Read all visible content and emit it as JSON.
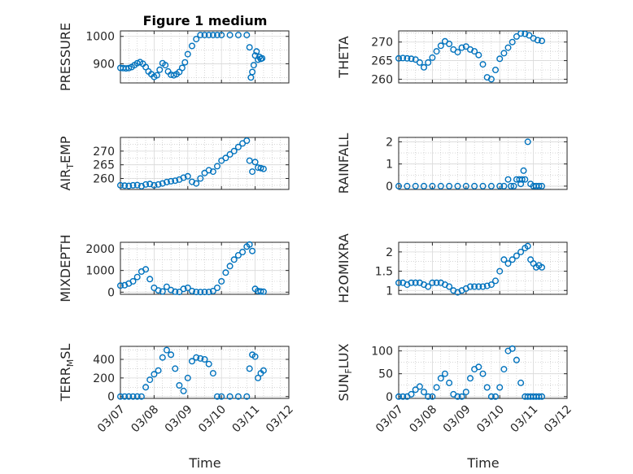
{
  "figure": {
    "title": "Figure 1 medium"
  },
  "colors": {
    "marker": "#0072BD",
    "axis": "#262626",
    "grid": "#bdbdbd"
  },
  "chart_data": [
    {
      "id": "pressure",
      "type": "scatter",
      "title": "Figure 1 medium",
      "ylabel": "PRESSURE",
      "xlim": [
        "03/07",
        "03/12"
      ],
      "ylim": [
        830,
        1020
      ],
      "yticks": [
        900,
        1000
      ],
      "ytick_labels": [
        "900",
        "1000"
      ],
      "xticks": [
        "03/07",
        "03/08",
        "03/09",
        "03/10",
        "03/11",
        "03/12"
      ],
      "x": [
        "03/07 00:00",
        "03/07 02:00",
        "03/07 04:00",
        "03/07 06:00",
        "03/07 08:00",
        "03/07 10:00",
        "03/07 12:00",
        "03/07 14:00",
        "03/07 16:00",
        "03/07 18:00",
        "03/07 20:00",
        "03/07 22:00",
        "03/08 00:00",
        "03/08 02:00",
        "03/08 04:00",
        "03/08 06:00",
        "03/08 08:00",
        "03/08 10:00",
        "03/08 12:00",
        "03/08 14:00",
        "03/08 16:00",
        "03/08 18:00",
        "03/08 20:00",
        "03/08 22:00",
        "03/09 00:00",
        "03/09 03:00",
        "03/09 06:00",
        "03/09 09:00",
        "03/09 12:00",
        "03/09 15:00",
        "03/09 18:00",
        "03/09 21:00",
        "03/10 00:00",
        "03/10 06:00",
        "03/10 12:00",
        "03/10 18:00",
        "03/10 20:00",
        "03/10 21:00",
        "03/10 22:00",
        "03/10 23:00",
        "03/11 00:00",
        "03/11 01:00",
        "03/11 02:00",
        "03/11 03:00",
        "03/11 04:00",
        "03/11 05:00"
      ],
      "y": [
        885,
        884,
        883,
        884,
        888,
        895,
        902,
        906,
        900,
        888,
        872,
        862,
        852,
        858,
        878,
        902,
        895,
        872,
        860,
        858,
        862,
        870,
        885,
        905,
        935,
        965,
        990,
        1005,
        1005,
        1005,
        1005,
        1005,
        1005,
        1005,
        1005,
        1005,
        960,
        850,
        870,
        895,
        930,
        945,
        915,
        925,
        918,
        920
      ]
    },
    {
      "id": "theta",
      "type": "scatter",
      "ylabel": "THETA",
      "xlim": [
        "03/07",
        "03/12"
      ],
      "ylim": [
        259,
        273
      ],
      "yticks": [
        260,
        265,
        270
      ],
      "ytick_labels": [
        "260",
        "265",
        "270"
      ],
      "xticks": [
        "03/07",
        "03/08",
        "03/09",
        "03/10",
        "03/11",
        "03/12"
      ],
      "x": [
        "03/07 00:00",
        "03/07 03:00",
        "03/07 06:00",
        "03/07 09:00",
        "03/07 12:00",
        "03/07 15:00",
        "03/07 18:00",
        "03/07 21:00",
        "03/08 00:00",
        "03/08 03:00",
        "03/08 06:00",
        "03/08 09:00",
        "03/08 12:00",
        "03/08 15:00",
        "03/08 18:00",
        "03/08 21:00",
        "03/09 00:00",
        "03/09 03:00",
        "03/09 06:00",
        "03/09 09:00",
        "03/09 12:00",
        "03/09 15:00",
        "03/09 18:00",
        "03/09 21:00",
        "03/10 00:00",
        "03/10 03:00",
        "03/10 06:00",
        "03/10 09:00",
        "03/10 12:00",
        "03/10 15:00",
        "03/10 18:00",
        "03/10 21:00",
        "03/11 00:00",
        "03/11 03:00",
        "03/11 06:00"
      ],
      "y": [
        265.6,
        265.7,
        265.6,
        265.5,
        265.3,
        264.5,
        263.2,
        264.5,
        265.8,
        267.5,
        269.0,
        270.2,
        269.5,
        268.0,
        267.3,
        268.5,
        268.8,
        268.0,
        267.5,
        266.5,
        264.0,
        260.5,
        260.0,
        262.5,
        265.5,
        267.0,
        268.5,
        270.0,
        271.5,
        272.3,
        272.2,
        271.8,
        271.0,
        270.5,
        270.3
      ]
    },
    {
      "id": "air_temp",
      "type": "scatter",
      "ylabel": "AIR_TEMP",
      "ylabel_parts": [
        "AIR",
        "T",
        "EMP"
      ],
      "xlim": [
        "03/07",
        "03/12"
      ],
      "ylim": [
        256,
        275
      ],
      "yticks": [
        260,
        265,
        270
      ],
      "ytick_labels": [
        "260",
        "265",
        "270"
      ],
      "xticks": [
        "03/07",
        "03/08",
        "03/09",
        "03/10",
        "03/11",
        "03/12"
      ],
      "x": [
        "03/07 00:00",
        "03/07 03:00",
        "03/07 06:00",
        "03/07 09:00",
        "03/07 12:00",
        "03/07 15:00",
        "03/07 18:00",
        "03/07 21:00",
        "03/08 00:00",
        "03/08 03:00",
        "03/08 06:00",
        "03/08 09:00",
        "03/08 12:00",
        "03/08 15:00",
        "03/08 18:00",
        "03/08 21:00",
        "03/09 00:00",
        "03/09 03:00",
        "03/09 06:00",
        "03/09 09:00",
        "03/09 12:00",
        "03/09 15:00",
        "03/09 18:00",
        "03/09 21:00",
        "03/10 00:00",
        "03/10 03:00",
        "03/10 06:00",
        "03/10 09:00",
        "03/10 12:00",
        "03/10 15:00",
        "03/10 18:00",
        "03/10 20:00",
        "03/10 22:00",
        "03/11 00:00",
        "03/11 02:00",
        "03/11 04:00",
        "03/11 06:00"
      ],
      "y": [
        257.5,
        257.4,
        257.3,
        257.5,
        257.6,
        257.2,
        257.8,
        258.0,
        257.5,
        257.8,
        258.2,
        258.7,
        259.0,
        259.2,
        259.6,
        260.3,
        260.8,
        258.8,
        258.2,
        260.0,
        262.0,
        263.0,
        262.5,
        264.5,
        266.5,
        267.5,
        268.8,
        270.0,
        271.5,
        272.8,
        273.8,
        266.5,
        262.5,
        266.0,
        264.0,
        263.8,
        263.5
      ]
    },
    {
      "id": "rainfall",
      "type": "scatter",
      "ylabel": "RAINFALL",
      "xlim": [
        "03/07",
        "03/12"
      ],
      "ylim": [
        -0.15,
        2.2
      ],
      "yticks": [
        0,
        1,
        2
      ],
      "ytick_labels": [
        "0",
        "1",
        "2"
      ],
      "xticks": [
        "03/07",
        "03/08",
        "03/09",
        "03/10",
        "03/11",
        "03/12"
      ],
      "x": [
        "03/07 00:00",
        "03/07 06:00",
        "03/07 12:00",
        "03/07 18:00",
        "03/08 00:00",
        "03/08 06:00",
        "03/08 12:00",
        "03/08 18:00",
        "03/09 00:00",
        "03/09 06:00",
        "03/09 12:00",
        "03/09 18:00",
        "03/10 00:00",
        "03/10 03:00",
        "03/10 06:00",
        "03/10 08:00",
        "03/10 10:00",
        "03/10 12:00",
        "03/10 14:00",
        "03/10 15:00",
        "03/10 16:00",
        "03/10 17:00",
        "03/10 18:00",
        "03/10 20:00",
        "03/10 22:00",
        "03/11 00:00",
        "03/11 02:00",
        "03/11 04:00",
        "03/11 06:00"
      ],
      "y": [
        0,
        0,
        0,
        0,
        0,
        0,
        0,
        0,
        0,
        0,
        0,
        0,
        0,
        0,
        0.3,
        0,
        0,
        0.3,
        0.3,
        0.1,
        0.3,
        0.7,
        0.3,
        2.0,
        0.1,
        0,
        0,
        0,
        0
      ]
    },
    {
      "id": "mixdepth",
      "type": "scatter",
      "ylabel": "MIXDEPTH",
      "xlim": [
        "03/07",
        "03/12"
      ],
      "ylim": [
        -100,
        2300
      ],
      "yticks": [
        0,
        1000,
        2000
      ],
      "ytick_labels": [
        "0",
        "1000",
        "2000"
      ],
      "xticks": [
        "03/07",
        "03/08",
        "03/09",
        "03/10",
        "03/11",
        "03/12"
      ],
      "x": [
        "03/07 00:00",
        "03/07 03:00",
        "03/07 06:00",
        "03/07 09:00",
        "03/07 12:00",
        "03/07 15:00",
        "03/07 18:00",
        "03/07 21:00",
        "03/08 00:00",
        "03/08 03:00",
        "03/08 06:00",
        "03/08 09:00",
        "03/08 12:00",
        "03/08 15:00",
        "03/08 18:00",
        "03/08 21:00",
        "03/09 00:00",
        "03/09 03:00",
        "03/09 06:00",
        "03/09 09:00",
        "03/09 12:00",
        "03/09 15:00",
        "03/09 18:00",
        "03/09 21:00",
        "03/10 00:00",
        "03/10 03:00",
        "03/10 06:00",
        "03/10 09:00",
        "03/10 12:00",
        "03/10 15:00",
        "03/10 18:00",
        "03/10 20:00",
        "03/10 22:00",
        "03/11 00:00",
        "03/11 02:00",
        "03/11 04:00",
        "03/11 06:00"
      ],
      "y": [
        300,
        320,
        400,
        500,
        700,
        950,
        1050,
        600,
        200,
        80,
        30,
        250,
        100,
        20,
        10,
        150,
        200,
        50,
        10,
        5,
        10,
        10,
        50,
        200,
        500,
        900,
        1200,
        1500,
        1700,
        1850,
        2100,
        2200,
        1900,
        150,
        50,
        30,
        20
      ]
    },
    {
      "id": "h2omixra",
      "type": "scatter",
      "ylabel": "H2OMIXRA",
      "xlim": [
        "03/07",
        "03/12"
      ],
      "ylim": [
        0.9,
        2.25
      ],
      "yticks": [
        1,
        1.5,
        2
      ],
      "ytick_labels": [
        "1",
        "1.5",
        "2"
      ],
      "xticks": [
        "03/07",
        "03/08",
        "03/09",
        "03/10",
        "03/11",
        "03/12"
      ],
      "x": [
        "03/07 00:00",
        "03/07 03:00",
        "03/07 06:00",
        "03/07 09:00",
        "03/07 12:00",
        "03/07 15:00",
        "03/07 18:00",
        "03/07 21:00",
        "03/08 00:00",
        "03/08 03:00",
        "03/08 06:00",
        "03/08 09:00",
        "03/08 12:00",
        "03/08 15:00",
        "03/08 18:00",
        "03/08 21:00",
        "03/09 00:00",
        "03/09 03:00",
        "03/09 06:00",
        "03/09 09:00",
        "03/09 12:00",
        "03/09 15:00",
        "03/09 18:00",
        "03/09 21:00",
        "03/10 00:00",
        "03/10 03:00",
        "03/10 06:00",
        "03/10 09:00",
        "03/10 12:00",
        "03/10 15:00",
        "03/10 18:00",
        "03/10 20:00",
        "03/10 22:00",
        "03/11 00:00",
        "03/11 02:00",
        "03/11 04:00",
        "03/11 06:00"
      ],
      "y": [
        1.2,
        1.2,
        1.15,
        1.2,
        1.2,
        1.2,
        1.15,
        1.1,
        1.2,
        1.2,
        1.2,
        1.15,
        1.1,
        1.0,
        0.95,
        1.0,
        1.05,
        1.1,
        1.1,
        1.1,
        1.1,
        1.12,
        1.15,
        1.25,
        1.5,
        1.8,
        1.7,
        1.8,
        1.9,
        2.0,
        2.1,
        2.15,
        1.8,
        1.7,
        1.6,
        1.65,
        1.6
      ]
    },
    {
      "id": "terr_msl",
      "type": "scatter",
      "ylabel": "TERR_MSL",
      "ylabel_parts": [
        "TERR",
        "M",
        "SL"
      ],
      "xlim": [
        "03/07",
        "03/12"
      ],
      "ylim": [
        -20,
        540
      ],
      "yticks": [
        0,
        200,
        400
      ],
      "ytick_labels": [
        "0",
        "200",
        "400"
      ],
      "xticks": [
        "03/07",
        "03/08",
        "03/09",
        "03/10",
        "03/11",
        "03/12"
      ],
      "x": [
        "03/07 00:00",
        "03/07 03:00",
        "03/07 06:00",
        "03/07 09:00",
        "03/07 12:00",
        "03/07 15:00",
        "03/07 18:00",
        "03/07 21:00",
        "03/08 00:00",
        "03/08 03:00",
        "03/08 06:00",
        "03/08 09:00",
        "03/08 12:00",
        "03/08 15:00",
        "03/08 18:00",
        "03/08 21:00",
        "03/09 00:00",
        "03/09 03:00",
        "03/09 06:00",
        "03/09 09:00",
        "03/09 12:00",
        "03/09 15:00",
        "03/09 18:00",
        "03/09 21:00",
        "03/10 00:00",
        "03/10 06:00",
        "03/10 12:00",
        "03/10 18:00",
        "03/10 20:00",
        "03/10 22:00",
        "03/11 00:00",
        "03/11 02:00",
        "03/11 04:00",
        "03/11 06:00"
      ],
      "y": [
        0,
        0,
        0,
        0,
        0,
        0,
        100,
        180,
        240,
        280,
        420,
        500,
        450,
        300,
        120,
        60,
        200,
        380,
        420,
        410,
        400,
        350,
        250,
        0,
        0,
        0,
        0,
        0,
        300,
        450,
        430,
        200,
        250,
        280
      ]
    },
    {
      "id": "sun_flux",
      "type": "scatter",
      "ylabel": "SUN_FLUX",
      "ylabel_parts": [
        "SUN",
        "F",
        "LUX"
      ],
      "xlim": [
        "03/07",
        "03/12"
      ],
      "ylim": [
        -4,
        110
      ],
      "yticks": [
        0,
        50,
        100
      ],
      "ytick_labels": [
        "0",
        "50",
        "100"
      ],
      "xticks": [
        "03/07",
        "03/08",
        "03/09",
        "03/10",
        "03/11",
        "03/12"
      ],
      "x": [
        "03/07 00:00",
        "03/07 03:00",
        "03/07 06:00",
        "03/07 09:00",
        "03/07 12:00",
        "03/07 15:00",
        "03/07 18:00",
        "03/07 21:00",
        "03/08 00:00",
        "03/08 03:00",
        "03/08 06:00",
        "03/08 09:00",
        "03/08 12:00",
        "03/08 15:00",
        "03/08 18:00",
        "03/08 21:00",
        "03/09 00:00",
        "03/09 03:00",
        "03/09 06:00",
        "03/09 09:00",
        "03/09 12:00",
        "03/09 15:00",
        "03/09 18:00",
        "03/09 21:00",
        "03/10 00:00",
        "03/10 03:00",
        "03/10 06:00",
        "03/10 09:00",
        "03/10 12:00",
        "03/10 15:00",
        "03/10 18:00",
        "03/10 20:00",
        "03/10 22:00",
        "03/11 00:00",
        "03/11 02:00",
        "03/11 04:00",
        "03/11 06:00"
      ],
      "y": [
        0,
        0,
        0,
        5,
        15,
        22,
        10,
        0,
        0,
        20,
        40,
        50,
        30,
        5,
        0,
        0,
        10,
        40,
        60,
        65,
        50,
        20,
        0,
        0,
        20,
        60,
        100,
        105,
        80,
        30,
        0,
        0,
        0,
        0,
        0,
        0,
        0
      ]
    }
  ],
  "xlabel": "Time"
}
